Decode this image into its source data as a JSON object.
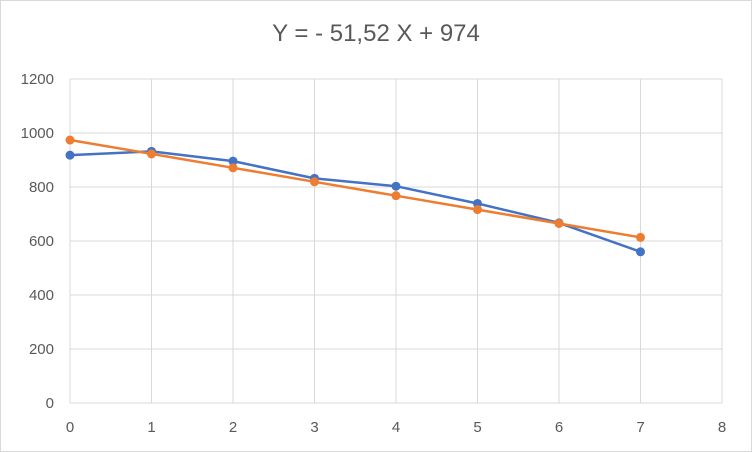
{
  "chart_data": {
    "type": "line",
    "title": "Y = - 51,52 X + 974",
    "xlabel": "",
    "ylabel": "",
    "xlim": [
      0,
      8
    ],
    "ylim": [
      0,
      1200
    ],
    "xticks": [
      "0",
      "1",
      "2",
      "3",
      "4",
      "5",
      "6",
      "7",
      "8"
    ],
    "yticks": [
      "0",
      "200",
      "400",
      "600",
      "800",
      "1000",
      "1200"
    ],
    "grid": true,
    "legend": "none",
    "series": [
      {
        "color": "#4472c4",
        "x": [
          0,
          1,
          2,
          3,
          4,
          5,
          6,
          7
        ],
        "y": [
          918,
          932,
          896,
          832,
          803,
          739,
          667,
          560
        ]
      },
      {
        "color": "#ed7d31",
        "x": [
          0,
          1,
          2,
          3,
          4,
          5,
          6,
          7
        ],
        "y": [
          974,
          922.5,
          871,
          819.4,
          767.9,
          716.4,
          664.9,
          613.4
        ]
      }
    ]
  }
}
